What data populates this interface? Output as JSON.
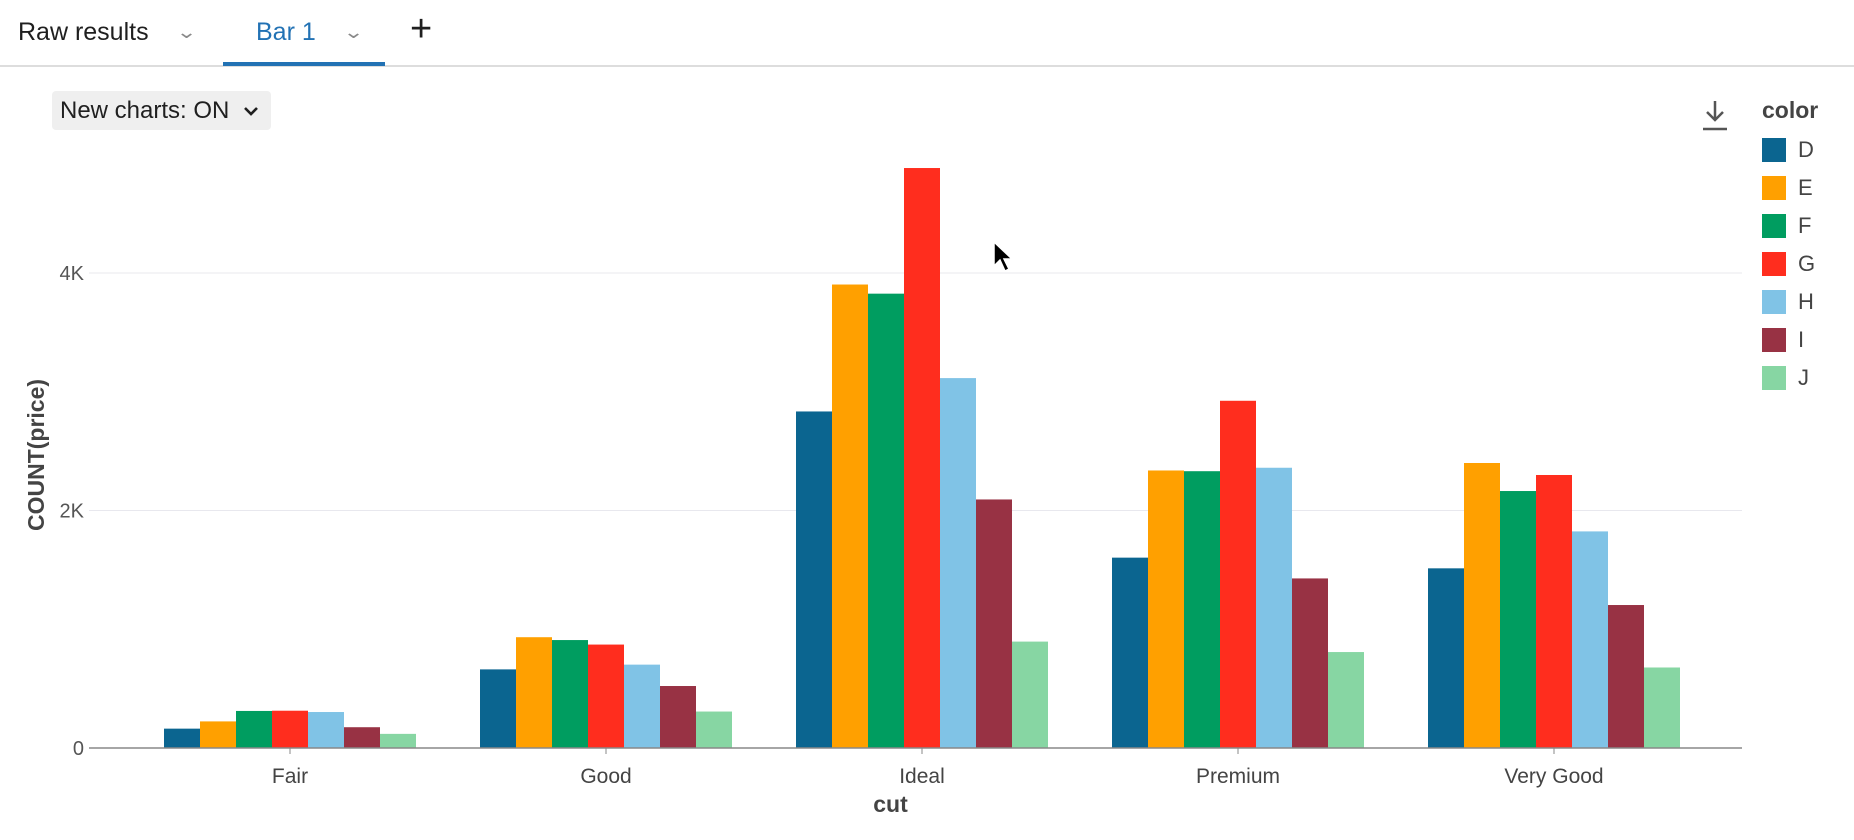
{
  "tabs": [
    {
      "label": "Raw results",
      "active": false
    },
    {
      "label": "Bar 1",
      "active": true
    }
  ],
  "add_tab_icon": "plus-icon",
  "toggle": {
    "label": "New charts: ON"
  },
  "download_icon": "download-icon",
  "chart_data": {
    "type": "bar",
    "xlabel": "cut",
    "ylabel": "COUNT(price)",
    "categories": [
      "Fair",
      "Good",
      "Ideal",
      "Premium",
      "Very Good"
    ],
    "ylim": [
      0,
      5000
    ],
    "yticks": [
      {
        "value": 0,
        "label": "0"
      },
      {
        "value": 2000,
        "label": "2K"
      },
      {
        "value": 4000,
        "label": "4K"
      }
    ],
    "grid": true,
    "legend": {
      "title": "color",
      "placement": "right"
    },
    "series": [
      {
        "name": "D",
        "color": "#0b6590",
        "values": [
          163,
          662,
          2834,
          1603,
          1513
        ]
      },
      {
        "name": "E",
        "color": "#ffa000",
        "values": [
          224,
          933,
          3903,
          2337,
          2400
        ]
      },
      {
        "name": "F",
        "color": "#009d60",
        "values": [
          312,
          909,
          3826,
          2331,
          2164
        ]
      },
      {
        "name": "G",
        "color": "#ff2d1e",
        "values": [
          314,
          871,
          4884,
          2924,
          2299
        ]
      },
      {
        "name": "H",
        "color": "#80c3e6",
        "values": [
          303,
          702,
          3115,
          2360,
          1824
        ]
      },
      {
        "name": "I",
        "color": "#983244",
        "values": [
          175,
          522,
          2093,
          1428,
          1204
        ]
      },
      {
        "name": "J",
        "color": "#87d6a3",
        "values": [
          119,
          307,
          896,
          808,
          678
        ]
      }
    ]
  }
}
